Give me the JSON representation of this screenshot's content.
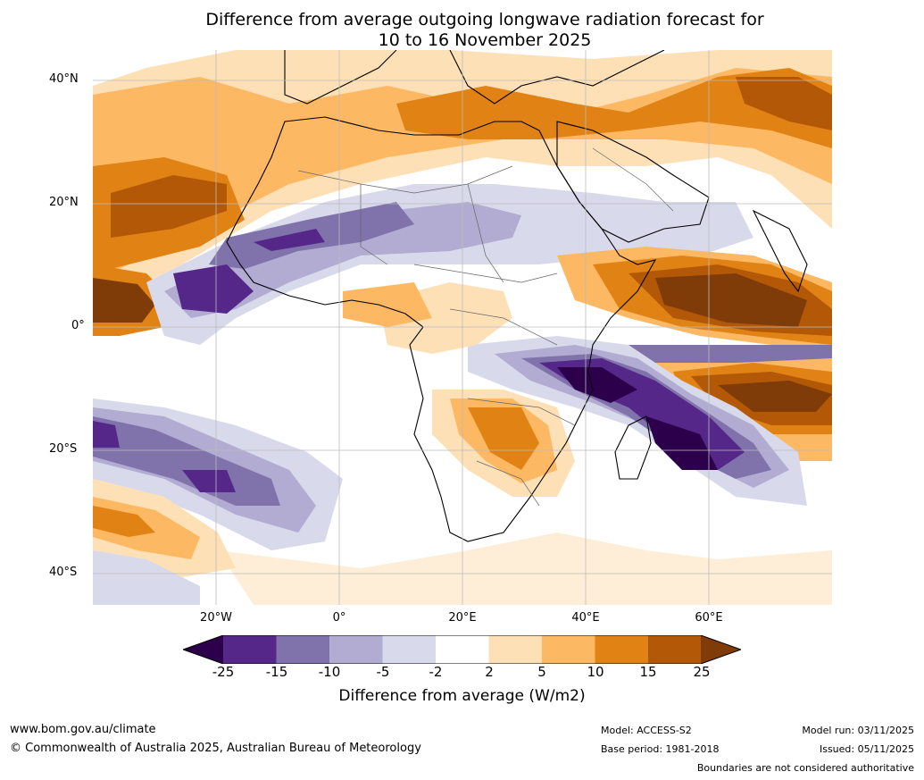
{
  "title": {
    "line1": "Difference from average outgoing longwave radiation forecast for",
    "line2": "10 to 16 November 2025"
  },
  "map": {
    "lat_labels": [
      "40°N",
      "20°N",
      "0°",
      "20°S",
      "40°S"
    ],
    "lon_labels": [
      "20°W",
      "0°",
      "20°E",
      "40°E",
      "60°E"
    ]
  },
  "legend": {
    "title": "Difference from average (W/m2)",
    "ticks": [
      "-25",
      "-15",
      "-10",
      "-5",
      "-2",
      "2",
      "5",
      "10",
      "15",
      "25"
    ],
    "colors": [
      "#2d004b",
      "#542788",
      "#8073ac",
      "#b2abd2",
      "#d8daeb",
      "#ffffff",
      "#fee0b6",
      "#fdb863",
      "#e08214",
      "#b35806",
      "#7f3b08"
    ]
  },
  "footer": {
    "website": "www.bom.gov.au/climate",
    "copyright": "© Commonwealth of Australia 2025, Australian Bureau of Meteorology",
    "model": "Model: ACCESS-S2",
    "base_period": "Base period: 1981-2018",
    "model_run": "Model run: 03/11/2025",
    "issued": "Issued: 05/11/2025",
    "disclaimer": "Boundaries are not considered authoritative"
  }
}
